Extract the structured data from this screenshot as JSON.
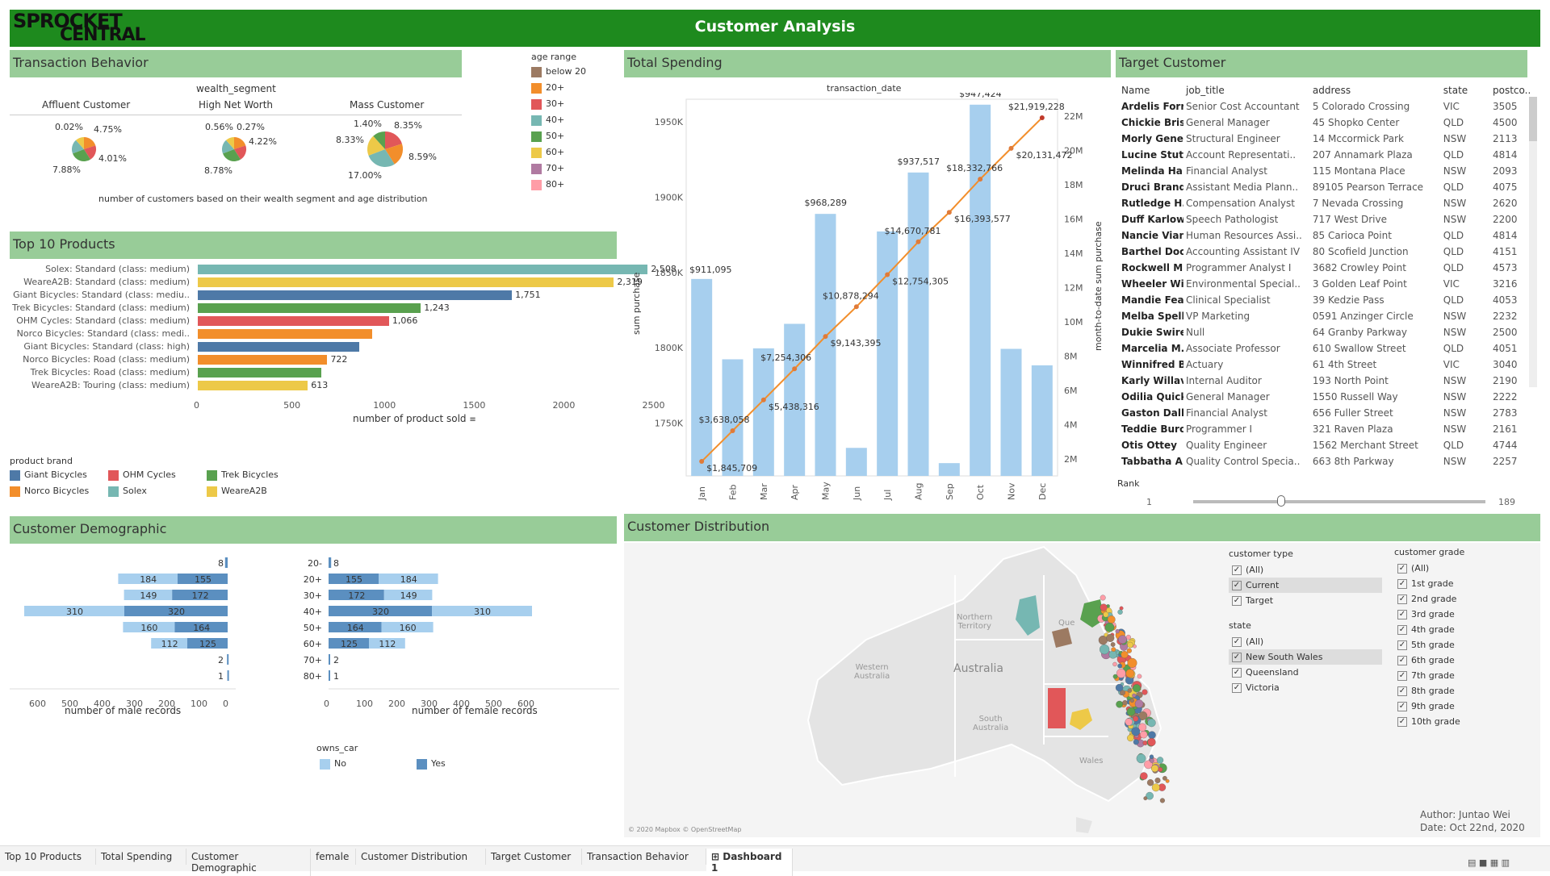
{
  "header": {
    "logo_line1": "SPROCKET",
    "logo_line2": "CENTRAL",
    "title": "Customer Analysis"
  },
  "transaction": {
    "title": "Transaction Behavior",
    "field": "wealth_segment",
    "segments": [
      {
        "name": "Affluent Customer",
        "labels": [
          "0.02%",
          "4.75%",
          "4.01%",
          "7.88%"
        ]
      },
      {
        "name": "High Net Worth",
        "labels": [
          "0.56%",
          "0.27%",
          "4.22%",
          "8.78%"
        ]
      },
      {
        "name": "Mass Customer",
        "labels": [
          "1.40%",
          "8.35%",
          "8.33%",
          "8.59%",
          "17.00%"
        ]
      }
    ],
    "caption": "number of  customers based on their wealth segment and age distribution"
  },
  "age_legend": {
    "title": "age range",
    "items": [
      "below 20",
      "20+",
      "30+",
      "40+",
      "50+",
      "60+",
      "70+",
      "80+"
    ],
    "colors": [
      "#9c7a62",
      "#f28e2b",
      "#e15759",
      "#76b7b2",
      "#59a14f",
      "#edc948",
      "#b07aa1",
      "#ff9da7"
    ]
  },
  "top10": {
    "title": "Top 10 Products",
    "xlabel": "number of product sold",
    "ticks": [
      "0",
      "500",
      "1000",
      "1500",
      "2000",
      "2500"
    ],
    "legend_title": "product brand",
    "brands": [
      {
        "name": "Giant Bicycles",
        "color": "#4e79a7"
      },
      {
        "name": "OHM Cycles",
        "color": "#e15759"
      },
      {
        "name": "Trek Bicycles",
        "color": "#59a14f"
      },
      {
        "name": "Norco Bicycles",
        "color": "#f28e2b"
      },
      {
        "name": "Solex",
        "color": "#76b7b2"
      },
      {
        "name": "WeareA2B",
        "color": "#edc948"
      }
    ]
  },
  "spending": {
    "title": "Total Spending",
    "top_label": "transaction_date",
    "ylabel": "sum purchase",
    "y2label": "month-to-date sum purchase"
  },
  "target": {
    "title": "Target Customer",
    "columns": [
      "Name",
      "job_title",
      "address",
      "state",
      "postco.."
    ],
    "rows": [
      [
        "Ardelis Forr..",
        "Senior Cost Accountant",
        "5 Colorado Crossing",
        "VIC",
        "3505"
      ],
      [
        "Chickie Bris..",
        "General Manager",
        "45 Shopko Center",
        "QLD",
        "4500"
      ],
      [
        "Morly Gene..",
        "Structural Engineer",
        "14 Mccormick Park",
        "NSW",
        "2113"
      ],
      [
        "Lucine Stutt",
        "Account Representati..",
        "207 Annamark Plaza",
        "QLD",
        "4814"
      ],
      [
        "Melinda Ha..",
        "Financial Analyst",
        "115 Montana Place",
        "NSW",
        "2093"
      ],
      [
        "Druci Brandli",
        "Assistant Media Plann..",
        "89105 Pearson Terrace",
        "QLD",
        "4075"
      ],
      [
        "Rutledge H..",
        "Compensation Analyst",
        "7 Nevada Crossing",
        "NSW",
        "2620"
      ],
      [
        "Duff Karlow..",
        "Speech Pathologist",
        "717 West Drive",
        "NSW",
        "2200"
      ],
      [
        "Nancie Vian",
        "Human Resources Assi..",
        "85 Carioca Point",
        "QLD",
        "4814"
      ],
      [
        "Barthel Doc..",
        "Accounting Assistant IV",
        "80 Scofield Junction",
        "QLD",
        "4151"
      ],
      [
        "Rockwell M..",
        "Programmer Analyst I",
        "3682 Crowley Point",
        "QLD",
        "4573"
      ],
      [
        "Wheeler Wi..",
        "Environmental Special..",
        "3 Golden Leaf Point",
        "VIC",
        "3216"
      ],
      [
        "Mandie Fea..",
        "Clinical Specialist",
        "39 Kedzie Pass",
        "QLD",
        "4053"
      ],
      [
        "Melba Spell..",
        "VP Marketing",
        "0591 Anzinger Circle",
        "NSW",
        "2232"
      ],
      [
        "Dukie Swire",
        "Null",
        "64 Granby Parkway",
        "NSW",
        "2500"
      ],
      [
        "Marcelia M..",
        "Associate Professor",
        "610 Swallow Street",
        "QLD",
        "4051"
      ],
      [
        "Winnifred B..",
        "Actuary",
        "61 4th Street",
        "VIC",
        "3040"
      ],
      [
        "Karly Willav..",
        "Internal Auditor",
        "193 North Point",
        "NSW",
        "2190"
      ],
      [
        "Odilia Quick",
        "General Manager",
        "1550 Russell Way",
        "NSW",
        "2222"
      ],
      [
        "Gaston Dall..",
        "Financial Analyst",
        "656 Fuller Street",
        "NSW",
        "2783"
      ],
      [
        "Teddie Burc..",
        "Programmer I",
        "321 Raven Plaza",
        "NSW",
        "2161"
      ],
      [
        "Otis Ottey",
        "Quality Engineer",
        "1562 Merchant Street",
        "QLD",
        "4744"
      ],
      [
        "Tabbatha A..",
        "Quality Control Specia..",
        "663 8th Parkway",
        "NSW",
        "2257"
      ]
    ],
    "rank_label": "Rank",
    "rank_min": "1",
    "rank_max": "189",
    "rank_value": 0.3
  },
  "demographic": {
    "title": "Customer Demographic",
    "male_label": "number of male records",
    "female_label": "number of female records",
    "male_ticks": [
      "600",
      "500",
      "400",
      "300",
      "200",
      "100",
      "0"
    ],
    "female_ticks": [
      "0",
      "100",
      "200",
      "300",
      "400",
      "500",
      "600"
    ],
    "legend_title": "owns_car",
    "legend_no": "No",
    "legend_yes": "Yes"
  },
  "distribution": {
    "title": "Customer Distribution",
    "map_labels": {
      "nt": "Northern\nTerritory",
      "wa": "Western\nAustralia",
      "sa": "South\nAustralia",
      "au": "Australia",
      "q": "Que",
      "w": "Wales"
    },
    "credit": "© 2020 Mapbox © OpenStreetMap",
    "author": "Author: Juntao Wei",
    "date": "Date: Oct 22nd, 2020",
    "customer_type": {
      "title": "customer type",
      "items": [
        "(All)",
        "Current",
        "Target"
      ]
    },
    "state": {
      "title": "state",
      "items": [
        "(All)",
        "New South Wales",
        "Queensland",
        "Victoria"
      ]
    },
    "grade": {
      "title": "customer grade",
      "items": [
        "(All)",
        "1st grade",
        "2nd grade",
        "3rd grade",
        "4th grade",
        "5th grade",
        "6th grade",
        "7th grade",
        "8th grade",
        "9th grade",
        "10th grade"
      ]
    }
  },
  "tabs": [
    "Top 10 Products",
    "Total Spending",
    "Customer Demographic",
    "female",
    "Customer Distribution",
    "Target Customer",
    "Transaction Behavior",
    "Dashboard 1"
  ],
  "chart_data": [
    {
      "type": "bar",
      "title": "Top 10 Products",
      "xlabel": "number of product sold",
      "xlim": [
        0,
        2700
      ],
      "categories": [
        "Solex: Standard (class: medium)",
        "WeareA2B: Standard (class: medium)",
        "Giant Bicycles: Standard (class: mediu..",
        "Trek Bicycles: Standard (class: medium)",
        "OHM Cycles: Standard (class: medium)",
        "Norco Bicycles: Standard (class: medi..",
        "Giant Bicycles: Standard (class: high)",
        "Norco Bicycles: Road (class: medium)",
        "Trek Bicycles: Road (class: medium)",
        "WeareA2B: Touring (class: medium)"
      ],
      "values": [
        2508,
        2319,
        1751,
        1243,
        1066,
        970,
        900,
        722,
        690,
        613
      ],
      "labels": [
        "2,508",
        "2,319",
        "1,751",
        "1,243",
        "1,066",
        "",
        "",
        "722",
        "",
        "613"
      ],
      "brands": [
        "Solex",
        "WeareA2B",
        "Giant Bicycles",
        "Trek Bicycles",
        "OHM Cycles",
        "Norco Bicycles",
        "Giant Bicycles",
        "Norco Bicycles",
        "Trek Bicycles",
        "WeareA2B"
      ]
    },
    {
      "type": "bar",
      "title": "Total Spending",
      "categories": [
        "Jan",
        "Feb",
        "Mar",
        "Apr",
        "May",
        "Jun",
        "Jul",
        "Aug",
        "Sep",
        "Oct",
        "Nov",
        "Dec"
      ],
      "values": [
        1845709,
        1792386,
        1799672,
        1815932,
        1888894,
        1733612,
        1877231,
        1916364,
        1723484,
        1961368,
        1799330,
        1788400
      ],
      "ylabel": "sum purchase",
      "ylim": [
        1715000,
        1965000
      ],
      "yticks": [
        "1750K",
        "1800K",
        "1850K",
        "1900K",
        "1950K"
      ],
      "line": {
        "name": "month-to-date sum purchase",
        "values": [
          1845709,
          3638058,
          5438316,
          7254306,
          9143395,
          10878294,
          12754305,
          14670781,
          16393577,
          18332766,
          20131472,
          21919228
        ],
        "labels": [
          "$1,845,709",
          "$3,638,058",
          "$5,438,316",
          "$7,254,306",
          "$9,143,395",
          "$10,878,294",
          "$12,754,305",
          "$14,670,781",
          "$16,393,577",
          "$18,332,766",
          "$20,131,472",
          "$21,919,228"
        ],
        "ylim": [
          1000000,
          23000000
        ],
        "yticks": [
          "2M",
          "4M",
          "6M",
          "8M",
          "10M",
          "12M",
          "14M",
          "16M",
          "18M",
          "20M",
          "22M"
        ]
      },
      "bar_labels": [
        "",
        "",
        "",
        "",
        "$968,289",
        "",
        "",
        "$937,517",
        "",
        "$947,424",
        "",
        ""
      ],
      "extra_labels": [
        "$911,095"
      ]
    },
    {
      "type": "bar",
      "title": "Customer Demographic",
      "categories": [
        "20-",
        "20+",
        "30+",
        "40+",
        "50+",
        "60+",
        "70+",
        "80+"
      ],
      "male_no": [
        0,
        184,
        149,
        310,
        160,
        112,
        0,
        0
      ],
      "male_yes": [
        8,
        155,
        172,
        320,
        164,
        125,
        2,
        1
      ],
      "female_no": [
        0,
        184,
        149,
        310,
        160,
        112,
        0,
        0
      ],
      "female_yes": [
        8,
        155,
        172,
        320,
        164,
        125,
        2,
        1
      ],
      "series": [
        {
          "name": "No"
        },
        {
          "name": "Yes"
        }
      ]
    }
  ]
}
